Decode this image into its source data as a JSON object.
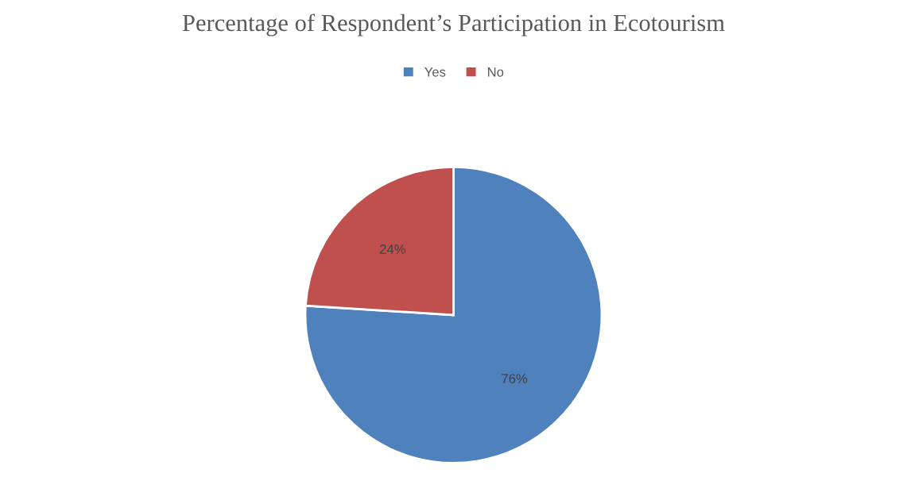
{
  "chart_data": {
    "type": "pie",
    "title": "Percentage of Respondent’s Participation in Ecotourism",
    "categories": [
      "Yes",
      "No"
    ],
    "values": [
      76,
      24
    ],
    "colors": [
      "#4f81bd",
      "#c0504d"
    ],
    "value_labels": [
      "76%",
      "24%"
    ],
    "legend": "top"
  }
}
